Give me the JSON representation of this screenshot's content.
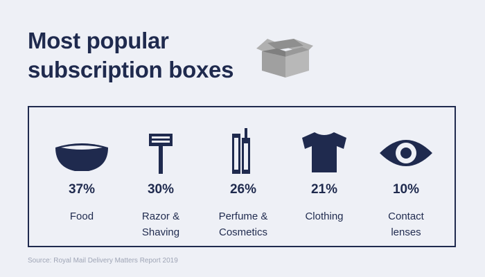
{
  "title": {
    "line1": "Most popular",
    "line2": "subscription boxes"
  },
  "colors": {
    "navy": "#1f2a4e",
    "background": "#eef0f6",
    "box_gray": "#a5a5a5"
  },
  "items": [
    {
      "icon": "bowl-icon",
      "percent": "37%",
      "label": [
        "Food"
      ]
    },
    {
      "icon": "razor-icon",
      "percent": "30%",
      "label": [
        "Razor &",
        "Shaving"
      ]
    },
    {
      "icon": "mascara-icon",
      "percent": "26%",
      "label": [
        "Perfume &",
        "Cosmetics"
      ]
    },
    {
      "icon": "tshirt-icon",
      "percent": "21%",
      "label": [
        "Clothing"
      ]
    },
    {
      "icon": "eye-icon",
      "percent": "10%",
      "label": [
        "Contact",
        "lenses"
      ]
    }
  ],
  "source": "Source: Royal Mail Delivery Matters Report 2019"
}
